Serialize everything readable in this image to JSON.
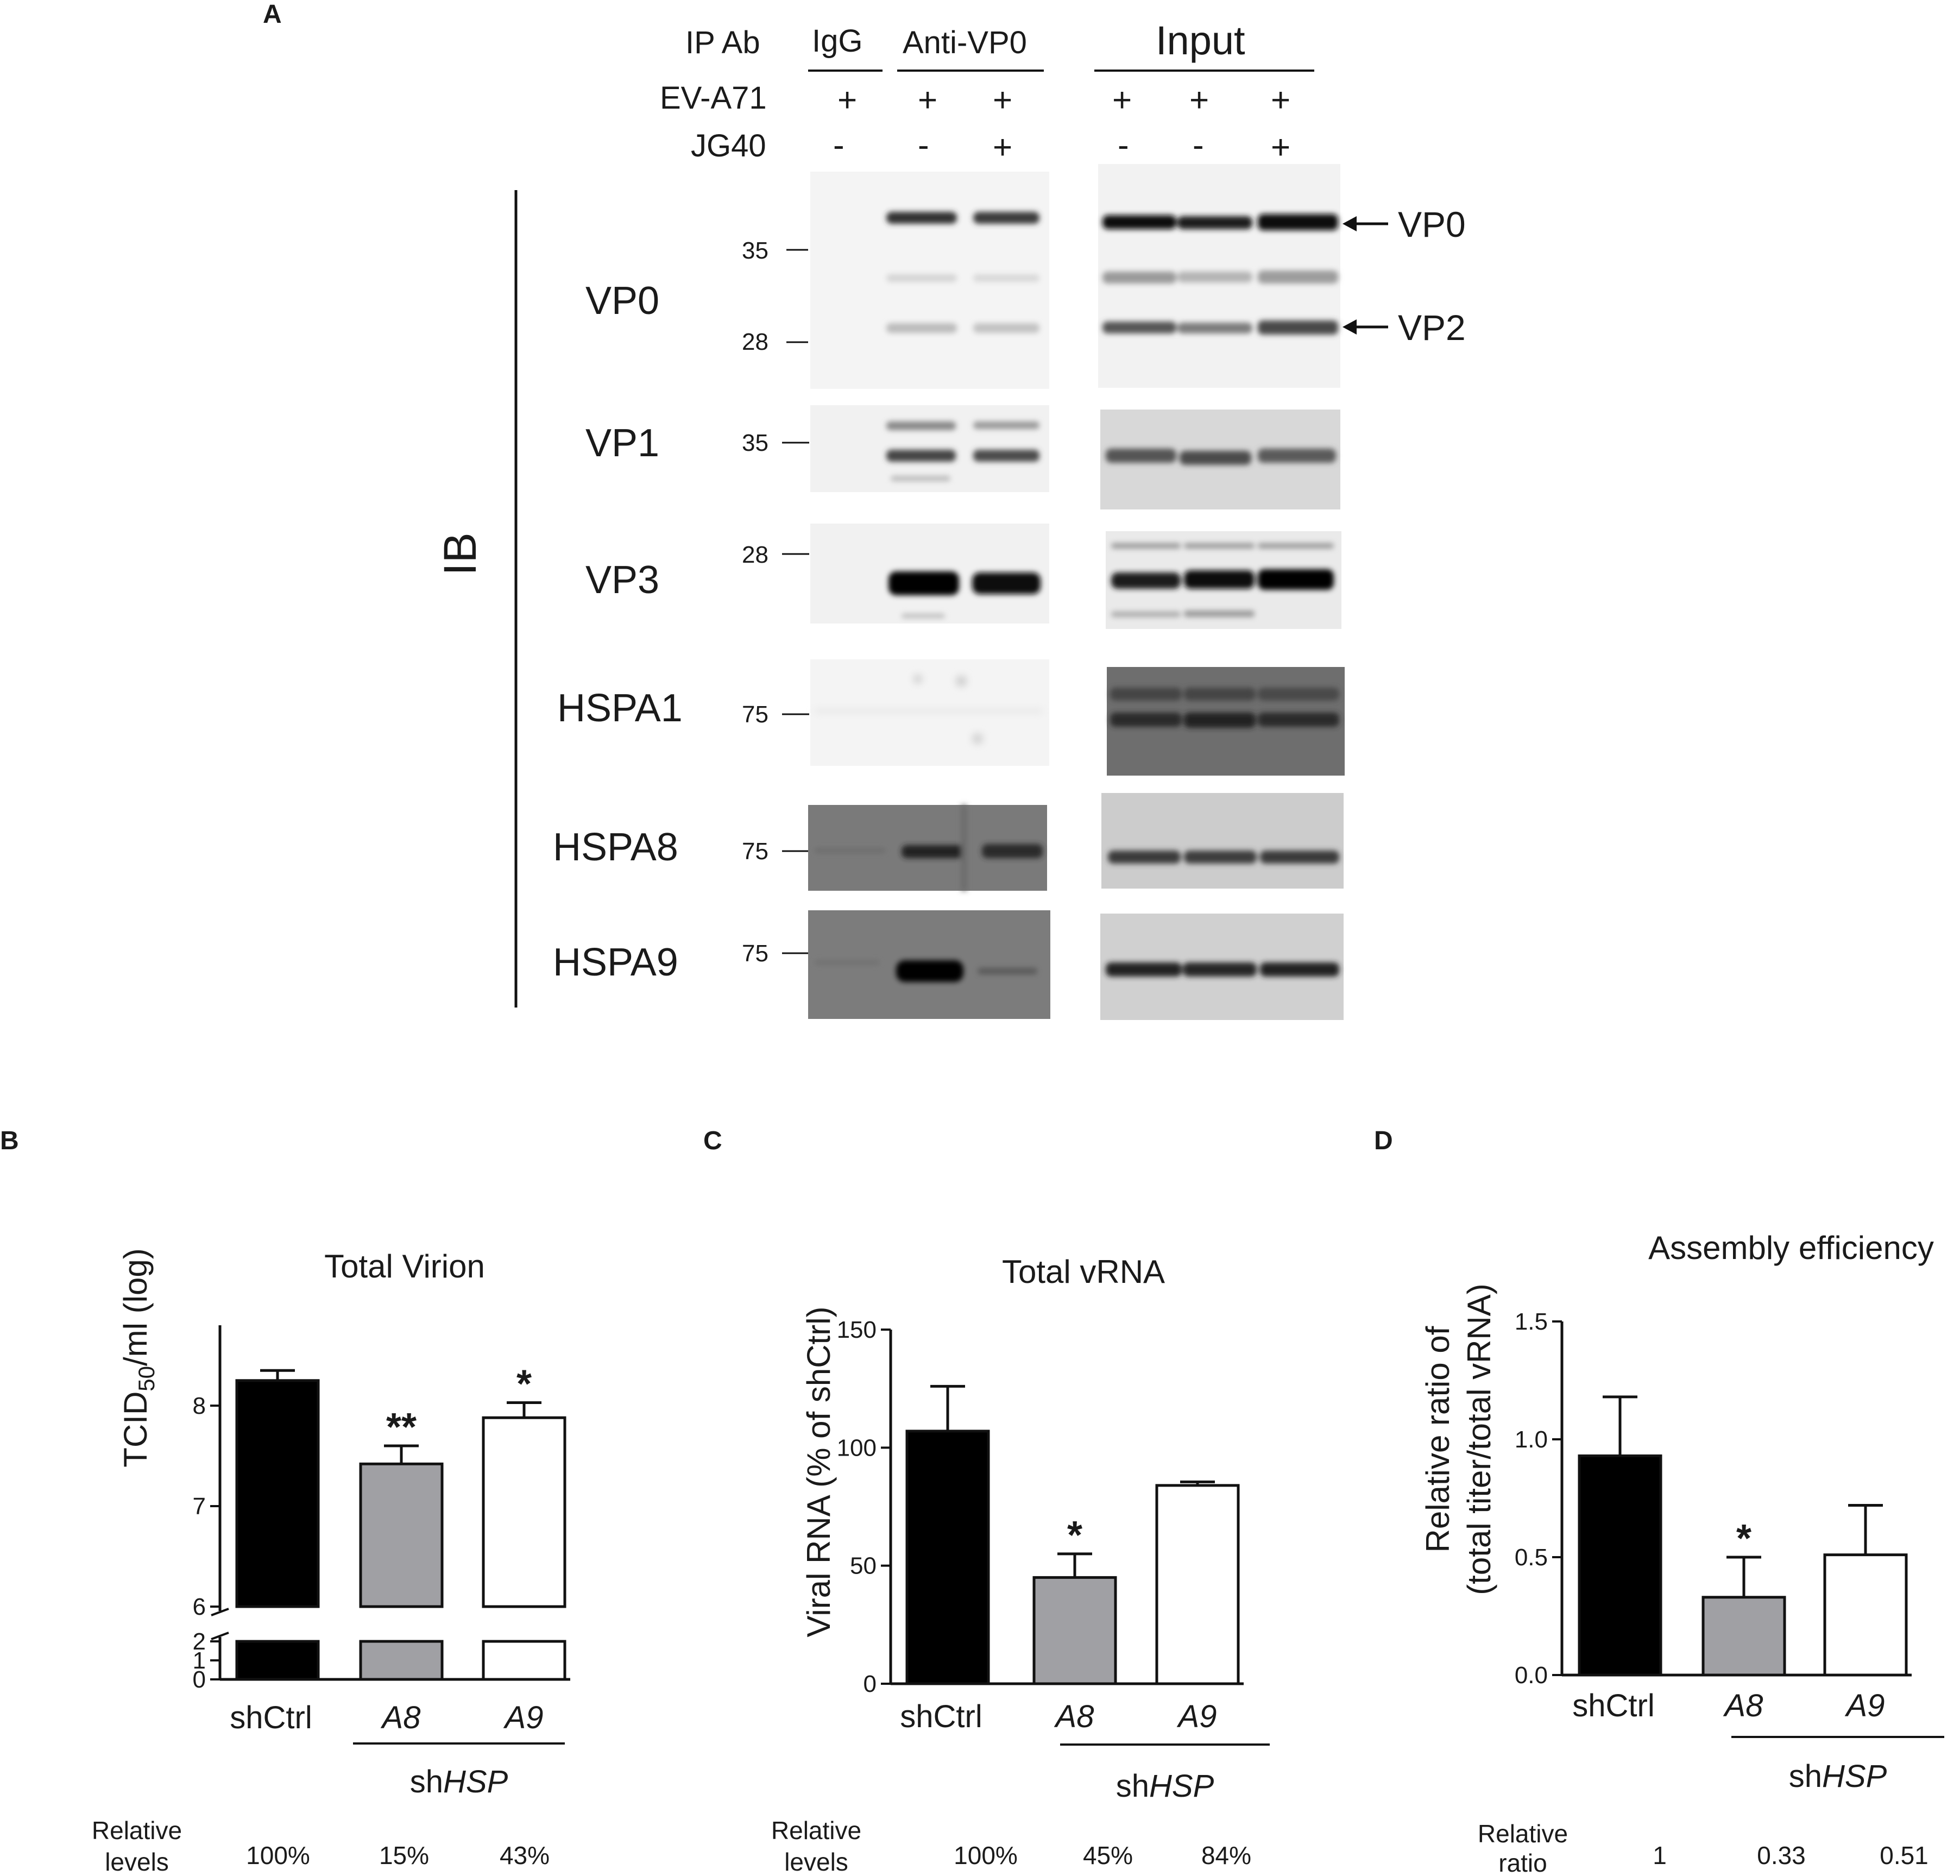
{
  "figure": {
    "panel_letters": [
      "A",
      "B",
      "C",
      "D"
    ]
  },
  "blot": {
    "header_rows": [
      {
        "label": "IP Ab"
      },
      {
        "label": "EV-A71",
        "signs": [
          "+",
          "+",
          "+",
          "+",
          "+",
          "+"
        ]
      },
      {
        "label": "JG40",
        "signs": [
          "-",
          "-",
          "+",
          "-",
          "-",
          "+"
        ]
      }
    ],
    "groups": [
      "IgG",
      "Anti-VP0",
      "Input"
    ],
    "ib_label": "IB",
    "proteins": [
      "VP0",
      "VP1",
      "VP3",
      "HSPA1",
      "HSPA8",
      "HSPA9"
    ],
    "mw_markers": [
      "35",
      "28",
      "35",
      "28",
      "75",
      "75",
      "75"
    ],
    "arrows": [
      "VP0",
      "VP2"
    ]
  },
  "chart_data": [
    {
      "type": "bar",
      "panel": "B",
      "title": "Total Virion",
      "ylabel_parts": [
        "TCID",
        "50",
        "/ml (log)"
      ],
      "categories": [
        "shCtrl",
        "A8",
        "A9"
      ],
      "values": [
        8.25,
        7.42,
        7.88
      ],
      "errors": [
        0.1,
        0.18,
        0.15
      ],
      "significance": [
        "",
        "**",
        "*"
      ],
      "bar_colors": [
        "#000000",
        "#a0a0a4",
        "#ffffff"
      ],
      "yticks_upper": [
        "6",
        "7",
        "8"
      ],
      "yticks_lower": [
        "0",
        "1",
        "2"
      ],
      "axis_break": true,
      "group_label": {
        "prefix": "sh",
        "italic": "HSP"
      },
      "relative_label": [
        "Relative",
        "levels"
      ],
      "relative_values": [
        "100%",
        "15%",
        "43%"
      ]
    },
    {
      "type": "bar",
      "panel": "C",
      "title": "Total vRNA",
      "ylabel": "Viral RNA (% of shCtrl)",
      "categories": [
        "shCtrl",
        "A8",
        "A9"
      ],
      "values": [
        107,
        45,
        84
      ],
      "errors": [
        19,
        10,
        1.5
      ],
      "significance": [
        "",
        "*",
        ""
      ],
      "bar_colors": [
        "#000000",
        "#a0a0a4",
        "#ffffff"
      ],
      "ylim": [
        0,
        150
      ],
      "yticks": [
        "0",
        "50",
        "100",
        "150"
      ],
      "group_label": {
        "prefix": "sh",
        "italic": "HSP"
      },
      "relative_label": [
        "Relative",
        "levels"
      ],
      "relative_values": [
        "100%",
        "45%",
        "84%"
      ]
    },
    {
      "type": "bar",
      "panel": "D",
      "title": "Assembly efficiency",
      "ylabel_lines": [
        "Relative ratio of",
        "(total titer/total vRNA)"
      ],
      "categories": [
        "shCtrl",
        "A8",
        "A9"
      ],
      "values": [
        0.93,
        0.33,
        0.51
      ],
      "errors": [
        0.25,
        0.17,
        0.21
      ],
      "significance": [
        "",
        "*",
        ""
      ],
      "bar_colors": [
        "#000000",
        "#a0a0a4",
        "#ffffff"
      ],
      "ylim": [
        0,
        1.5
      ],
      "yticks": [
        "0.0",
        "0.5",
        "1.0",
        "1.5"
      ],
      "group_label": {
        "prefix": "sh",
        "italic": "HSP"
      },
      "relative_label": [
        "Relative",
        "ratio"
      ],
      "relative_values": [
        "1",
        "0.33",
        "0.51"
      ]
    }
  ]
}
